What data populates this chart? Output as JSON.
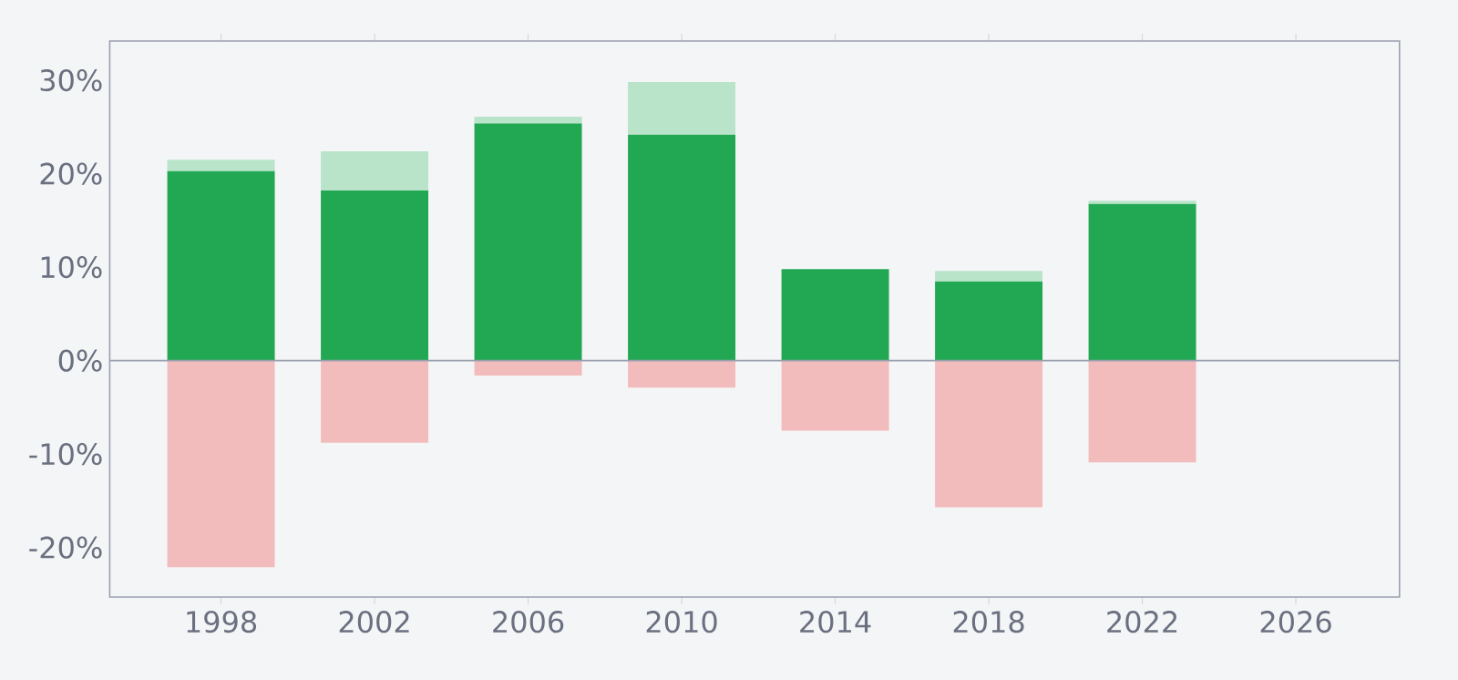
{
  "chart_data": {
    "type": "bar",
    "stacked": true,
    "x": [
      1998,
      2002,
      2006,
      2010,
      2014,
      2018,
      2022
    ],
    "series": [
      {
        "color": "#22a852",
        "values": [
          20.3,
          18.2,
          25.4,
          24.2,
          9.8,
          8.5,
          16.8
        ]
      },
      {
        "color": "#b9e4c9",
        "values": [
          1.2,
          4.2,
          0.7,
          5.6,
          0,
          1.1,
          0.3
        ]
      },
      {
        "color": "#f3bcbc",
        "values": [
          -22.1,
          -8.8,
          -1.6,
          -2.9,
          -7.5,
          -15.7,
          -10.9
        ]
      }
    ],
    "xlim": [
      1995.1,
      2028.7
    ],
    "ylim": [
      -25.3,
      34.2
    ],
    "xticks": [
      1998,
      2002,
      2006,
      2010,
      2014,
      2018,
      2022,
      2026
    ],
    "yticks": [
      {
        "value": -20,
        "label": "-20%"
      },
      {
        "value": -10,
        "label": "-10%"
      },
      {
        "value": 0,
        "label": "0%"
      },
      {
        "value": 10,
        "label": "10%"
      },
      {
        "value": 20,
        "label": "20%"
      },
      {
        "value": 30,
        "label": "30%"
      }
    ],
    "ref_lines": [
      {
        "axis": "y",
        "value": 0,
        "color": "#9aa0ae"
      }
    ]
  }
}
